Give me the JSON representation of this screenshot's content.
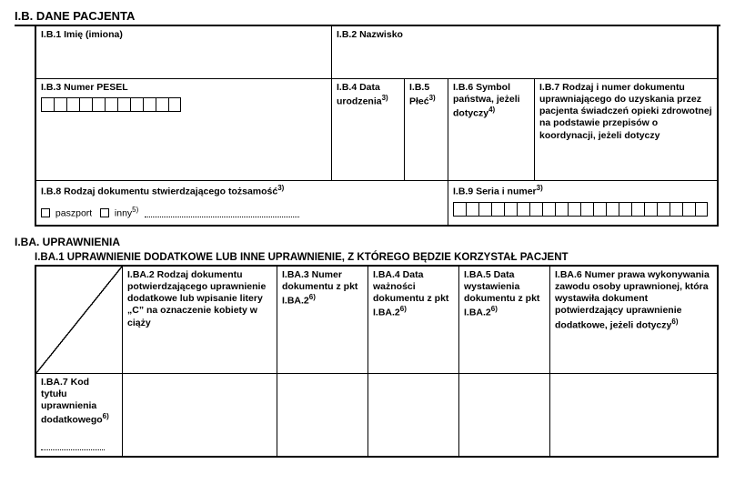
{
  "sectionIB": {
    "header": "I.B. DANE PACJENTA",
    "b1": "I.B.1 Imię (imiona)",
    "b2": "I.B.2 Nazwisko",
    "b3": "I.B.3 Numer PESEL",
    "b4": "I.B.4 Data urodzenia",
    "b4sup": "3)",
    "b5": "I.B.5 Płeć",
    "b5sup": "3)",
    "b6": "I.B.6 Symbol państwa, jeżeli dotyczy",
    "b6sup": "4)",
    "b7": "I.B.7 Rodzaj i numer dokumentu uprawniającego do uzyskania przez pacjenta świadczeń opieki zdrowotnej na podstawie przepisów o koordynacji, jeżeli dotyczy",
    "b8": "I.B.8 Rodzaj dokumentu stwierdzającego tożsamość",
    "b8sup": "3)",
    "b8opt1": "paszport",
    "b8opt2": "inny",
    "b8opt2sup": "5)",
    "b9": "I.B.9 Seria i numer",
    "b9sup": "3)"
  },
  "sectionIBA": {
    "header": "I.BA. UPRAWNIENIA",
    "sub": "I.BA.1 UPRAWNIENIE DODATKOWE LUB INNE UPRAWNIENIE, Z KTÓREGO BĘDZIE KORZYSTAŁ PACJENT",
    "ba2": "I.BA.2 Rodzaj dokumentu potwierdzającego uprawnienie dodatkowe lub wpisanie litery „C” na oznaczenie kobiety w ciąży",
    "ba3": "I.BA.3 Numer dokumentu z pkt I.BA.2",
    "ba3sup": "6)",
    "ba4": "I.BA.4 Data ważności dokumentu z pkt I.BA.2",
    "ba4sup": "6)",
    "ba5": "I.BA.5 Data wystawienia dokumentu z pkt I.BA.2",
    "ba5sup": "6)",
    "ba6": "I.BA.6 Numer prawa wykonywania zawodu osoby uprawnionej, która wystawiła dokument potwierdzający uprawnienie dodatkowe, jeżeli dotyczy",
    "ba6sup": "6)",
    "ba7": "I.BA.7 Kod tytułu uprawnienia dodatkowego",
    "ba7sup": "6)"
  },
  "layout": {
    "peselBoxes": 11,
    "serialBoxes": 20
  }
}
